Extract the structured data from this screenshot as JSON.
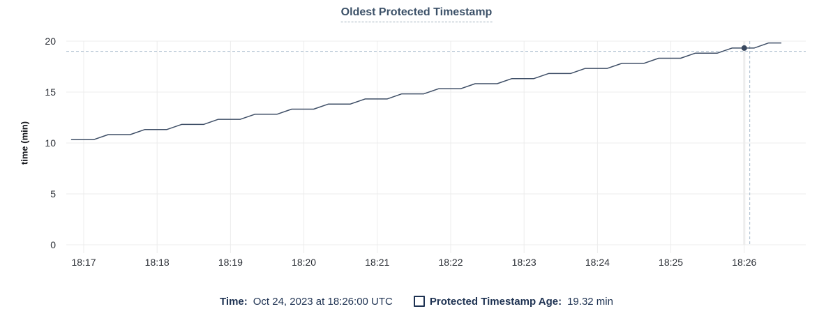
{
  "chart_data": {
    "type": "line",
    "title": "Oldest Protected Timestamp",
    "ylabel": "time (min)",
    "xlabel": "",
    "ylim": [
      0,
      20
    ],
    "grid": true,
    "y_ticks": [
      0,
      5,
      10,
      15,
      20
    ],
    "x_ticks": [
      {
        "t": 10,
        "label": "18:17"
      },
      {
        "t": 70,
        "label": "18:18"
      },
      {
        "t": 130,
        "label": "18:19"
      },
      {
        "t": 190,
        "label": "18:20"
      },
      {
        "t": 250,
        "label": "18:21"
      },
      {
        "t": 310,
        "label": "18:22"
      },
      {
        "t": 370,
        "label": "18:23"
      },
      {
        "t": 430,
        "label": "18:24"
      },
      {
        "t": 490,
        "label": "18:25"
      },
      {
        "t": 550,
        "label": "18:26"
      }
    ],
    "t_unit": "seconds since left edge of plot (left edge ~18:16:50, right edge ~18:26:30)",
    "series": [
      {
        "name": "Protected Timestamp Age",
        "unit": "min",
        "points": [
          [
            0,
            10.32
          ],
          [
            18,
            10.32
          ],
          [
            30,
            10.82
          ],
          [
            48,
            10.82
          ],
          [
            60,
            11.32
          ],
          [
            78,
            11.32
          ],
          [
            90,
            11.82
          ],
          [
            108,
            11.82
          ],
          [
            120,
            12.32
          ],
          [
            138,
            12.32
          ],
          [
            150,
            12.82
          ],
          [
            168,
            12.82
          ],
          [
            180,
            13.32
          ],
          [
            198,
            13.32
          ],
          [
            210,
            13.82
          ],
          [
            228,
            13.82
          ],
          [
            240,
            14.32
          ],
          [
            258,
            14.32
          ],
          [
            270,
            14.82
          ],
          [
            288,
            14.82
          ],
          [
            300,
            15.32
          ],
          [
            318,
            15.32
          ],
          [
            330,
            15.82
          ],
          [
            348,
            15.82
          ],
          [
            360,
            16.32
          ],
          [
            378,
            16.32
          ],
          [
            390,
            16.82
          ],
          [
            408,
            16.82
          ],
          [
            420,
            17.32
          ],
          [
            438,
            17.32
          ],
          [
            450,
            17.82
          ],
          [
            468,
            17.82
          ],
          [
            480,
            18.32
          ],
          [
            498,
            18.32
          ],
          [
            510,
            18.82
          ],
          [
            528,
            18.82
          ],
          [
            540,
            19.32
          ],
          [
            550,
            19.32
          ],
          [
            558,
            19.32
          ],
          [
            570,
            19.82
          ],
          [
            580,
            19.82
          ]
        ]
      }
    ],
    "highlight_point": {
      "t": 550,
      "value": 19.32,
      "x_label": "18:26"
    },
    "crosshair": {
      "t": 554.5,
      "value": 19.0
    },
    "legend_position": "bottom-center"
  },
  "legend": {
    "time_label": "Time:",
    "time_value": "Oct 24, 2023 at 18:26:00 UTC",
    "series_label": "Protected Timestamp Age:",
    "series_value": "19.32 min"
  },
  "colors": {
    "line": "#3e4e66",
    "dot": "#38485f",
    "grid": "#ececec",
    "focus_band": "#ededed",
    "crosshair": "#a6b9cb",
    "axis_text": "#2b2f36",
    "title_text": "#3c5168",
    "title_underline": "#9fb0bd",
    "legend_text": "#1e3252"
  }
}
